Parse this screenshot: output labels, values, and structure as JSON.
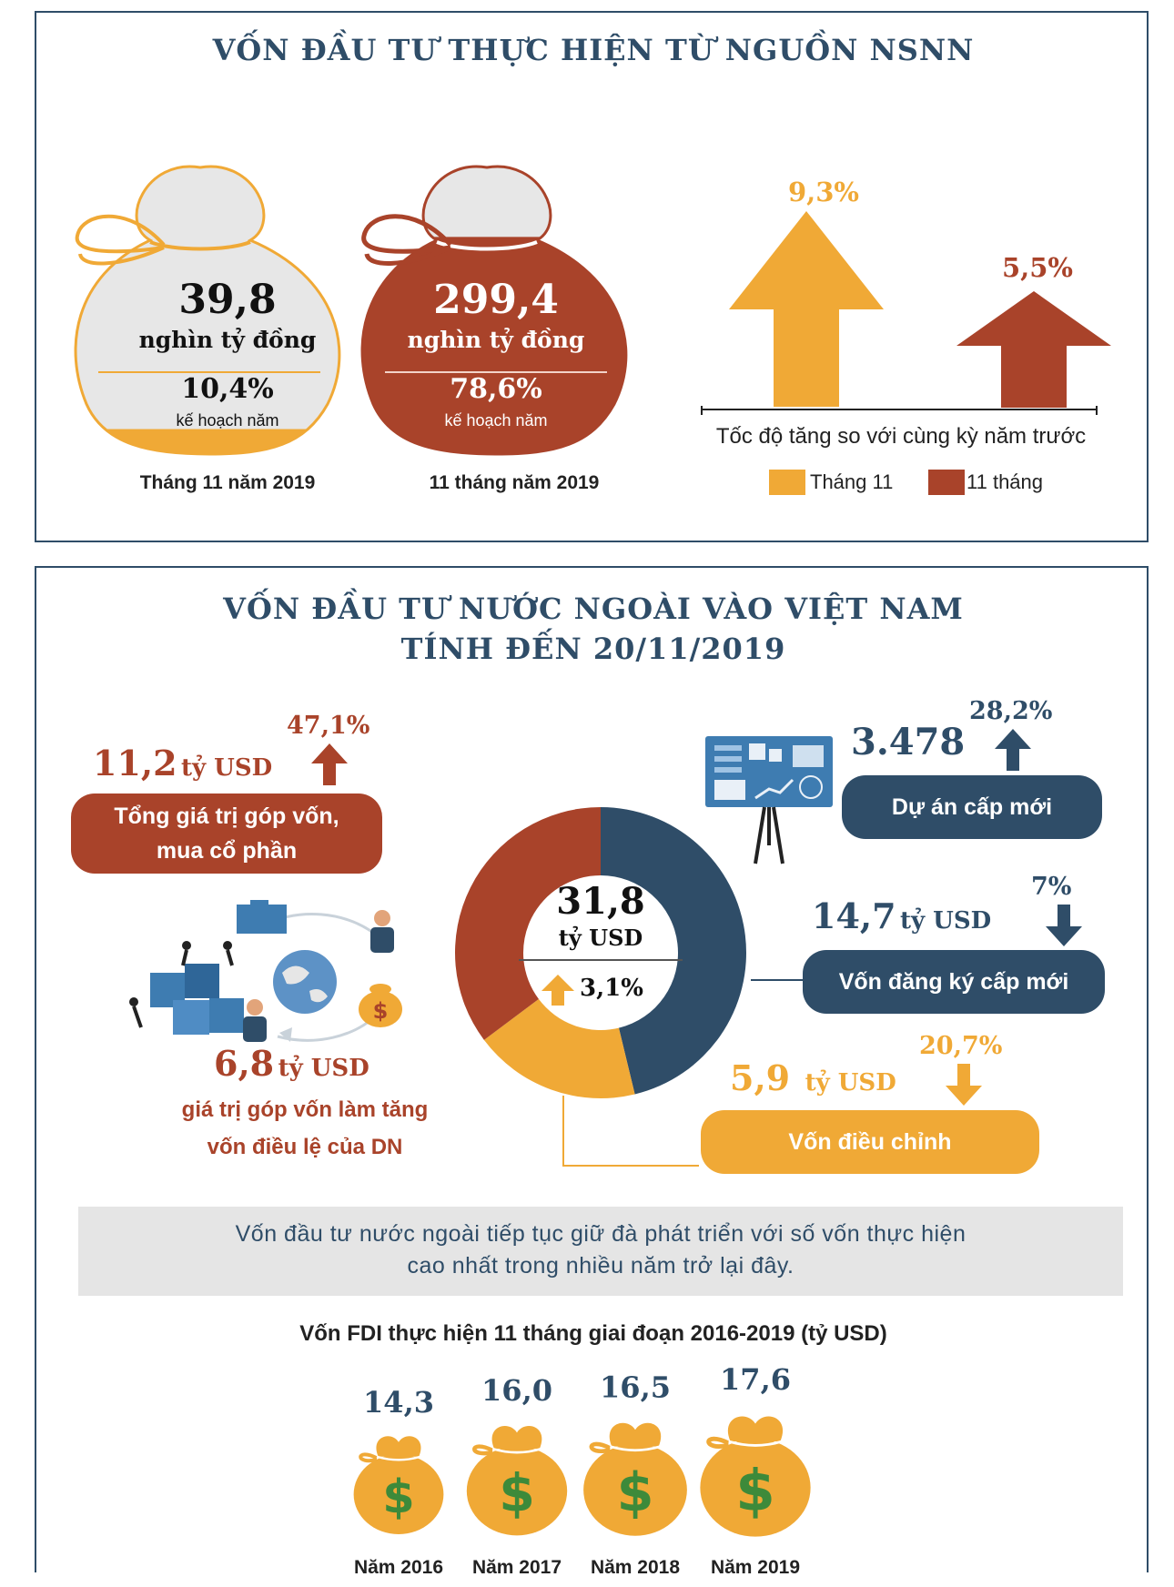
{
  "colors": {
    "navy": "#2f4d68",
    "orange": "#f0a936",
    "rust": "#a9432a",
    "grey": "#e5e5e5",
    "bagGrey": "#e7e7e7"
  },
  "nsnn": {
    "title": "VỐN ĐẦU TƯ THỰC HIỆN TỪ NGUỒN NSNN",
    "bag1": {
      "value": "39,8",
      "unit": "nghìn tỷ đồng",
      "percent": "10,4%",
      "percent_label": "kế hoạch năm",
      "caption": "Tháng 11 năm 2019",
      "fill_fraction": 0.104
    },
    "bag2": {
      "value": "299,4",
      "unit": "nghìn tỷ đồng",
      "percent": "78,6%",
      "percent_label": "kế hoạch năm",
      "caption": "11 tháng năm 2019",
      "fill_fraction": 0.786
    },
    "growth": {
      "arrow1_value": "9,3%",
      "arrow2_value": "5,5%",
      "caption": "Tốc độ tăng so với cùng kỳ năm trước",
      "legend": [
        "Tháng 11",
        "11 tháng"
      ]
    }
  },
  "fdi": {
    "title_line1": "VỐN ĐẦU TƯ NƯỚC NGOÀI VÀO VIỆT NAM",
    "title_line2": "TÍNH ĐẾN 20/11/2019",
    "center": {
      "value": "31,8",
      "unit": "tỷ USD",
      "change": "3,1%"
    },
    "donut": [
      {
        "label": "Vốn đăng ký cấp mới",
        "value": 14.7,
        "color": "#2f4d68"
      },
      {
        "label": "Vốn điều chỉnh",
        "value": 5.9,
        "color": "#f0a936"
      },
      {
        "label": "Tổng giá trị góp vốn, mua cổ phần",
        "value": 11.2,
        "color": "#a9432a"
      }
    ],
    "contrib": {
      "value": "11,2",
      "unit": "tỷ USD",
      "change": "47,1%",
      "label_line1": "Tổng giá trị góp vốn,",
      "label_line2": "mua cổ phần"
    },
    "charter": {
      "value": "6,8",
      "unit": "tỷ USD",
      "label_line1": "giá trị góp vốn làm tăng",
      "label_line2": "vốn điều lệ của DN"
    },
    "projects": {
      "value": "3.478",
      "change": "28,2%",
      "label": "Dự án cấp mới"
    },
    "new_reg": {
      "value": "14,7",
      "unit": "tỷ USD",
      "change": "7%",
      "label": "Vốn đăng ký cấp mới"
    },
    "adjust": {
      "value": "5,9",
      "unit": "tỷ USD",
      "change": "20,7%",
      "label": "Vốn điều chỉnh"
    },
    "note_line1": "Vốn đầu tư nước ngoài tiếp tục giữ đà phát triển với số vốn thực hiện",
    "note_line2": "cao nhất trong nhiều năm trở lại đây."
  },
  "chart_data": {
    "type": "bar",
    "title": "Vốn FDI thực hiện 11 tháng giai đoạn 2016-2019 (tỷ USD)",
    "categories": [
      "Năm 2016",
      "Năm 2017",
      "Năm 2018",
      "Năm 2019"
    ],
    "values": [
      14.3,
      16.0,
      16.5,
      17.6
    ],
    "value_labels": [
      "14,3",
      "16,0",
      "16,5",
      "17,6"
    ]
  }
}
